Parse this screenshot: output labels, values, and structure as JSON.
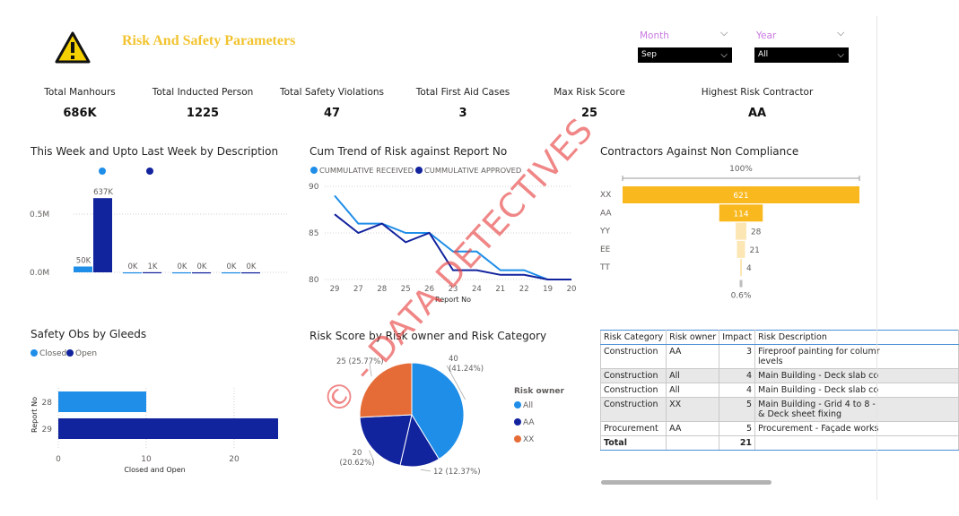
{
  "header": {
    "title": "Risk And Safety Parameters",
    "logo_icon": "warning-triangle-icon",
    "month_slicer": {
      "label": "Month",
      "value": "Sep"
    },
    "year_slicer": {
      "label": "Year",
      "value": "All"
    }
  },
  "kpis": [
    {
      "label": "Total Manhours",
      "value": "686K"
    },
    {
      "label": "Total Inducted Person",
      "value": "1225"
    },
    {
      "label": "Total Safety Violations",
      "value": "47"
    },
    {
      "label": "Total First Aid Cases",
      "value": "3"
    },
    {
      "label": "Max Risk Score",
      "value": "25"
    },
    {
      "label": "Highest Risk Contractor",
      "value": "AA"
    }
  ],
  "watermark": "© - DATA DETECTIVES",
  "colors": {
    "light_blue": "#1f8ee8",
    "dark_blue": "#12239e",
    "orange": "#e66c37",
    "gold": "#f9b81e",
    "pale_gold": "#fce6b3"
  },
  "chart_data": [
    {
      "id": "week",
      "type": "bar",
      "title": "This Week and Upto Last Week by Description",
      "categories": [
        "",
        "",
        "",
        ""
      ],
      "series": [
        {
          "values": [
            50000,
            0,
            0,
            0
          ],
          "labels": [
            "50K",
            "0K",
            "0K",
            "0K"
          ],
          "color": "#1f8ee8"
        },
        {
          "values": [
            637000,
            1000,
            0,
            0
          ],
          "labels": [
            "637K",
            "1K",
            "0K",
            "0K"
          ],
          "color": "#12239e"
        }
      ],
      "yticks": [
        "0.0M",
        "0.5M"
      ],
      "ytick_values": [
        0,
        500000
      ],
      "ylim": [
        0,
        800000
      ]
    },
    {
      "id": "cum",
      "type": "line",
      "title": "Cum Trend of Risk against Report No",
      "xlabel": "Report No",
      "categories": [
        "29",
        "27",
        "28",
        "25",
        "26",
        "23",
        "24",
        "21",
        "22",
        "19",
        "20"
      ],
      "series": [
        {
          "name": "CUMMULATIVE RECEIVED",
          "values": [
            89,
            86,
            86,
            85,
            85,
            83,
            83,
            81,
            81,
            80,
            80
          ],
          "color": "#1f8ee8"
        },
        {
          "name": "CUMMULATIVE APPROVED",
          "values": [
            87,
            85,
            86,
            84,
            85,
            81,
            81,
            80.5,
            80.5,
            80,
            80
          ],
          "color": "#12239e"
        }
      ],
      "yticks": [
        "80",
        "85",
        "90"
      ],
      "ytick_values": [
        80,
        85,
        90
      ],
      "ylim": [
        80,
        90
      ]
    },
    {
      "id": "funnel",
      "type": "bar",
      "title": "Contractors Against Non Compliance",
      "categories": [
        "XX",
        "AA",
        "YY",
        "EE",
        "TT"
      ],
      "values": [
        621,
        114,
        28,
        21,
        4
      ],
      "top_label": "100%",
      "bottom_label": "0.6%"
    },
    {
      "id": "gleeds",
      "type": "bar",
      "title": "Safety Obs by Gleeds",
      "xlabel": "Closed and Open",
      "ylabel": "Report No",
      "categories": [
        "28",
        "29"
      ],
      "series": [
        {
          "name": "Closed",
          "values": [
            10,
            0
          ],
          "color": "#1f8ee8"
        },
        {
          "name": "Open",
          "values": [
            0,
            25
          ],
          "color": "#12239e"
        }
      ],
      "xticks": [
        "0",
        "10",
        "20"
      ],
      "xtick_values": [
        0,
        10,
        20
      ],
      "xlim": [
        0,
        25
      ]
    },
    {
      "id": "pie",
      "type": "pie",
      "title": "Risk Score by Risk owner and Risk Category",
      "legend_title": "Risk owner",
      "slices": [
        {
          "name": "All",
          "value": 40,
          "label": "40\n(41.24%)",
          "color": "#1f8ee8"
        },
        {
          "name": "AA",
          "value": 12,
          "label": "12 (12.37%)",
          "color": "#12239e"
        },
        {
          "name": "AA",
          "value": 20,
          "label": "20\n(20.62%)",
          "color": "#12239e"
        },
        {
          "name": "XX",
          "value": 25,
          "label": "25 (25.77%)",
          "color": "#e66c37"
        }
      ],
      "legend": [
        "All",
        "AA",
        "XX"
      ]
    }
  ],
  "risk_table": {
    "columns": [
      "Risk Category",
      "Risk owner",
      "Impact",
      "Risk Description"
    ],
    "rows": [
      {
        "c": "Construction",
        "o": "AA",
        "i": "3",
        "d1": "Fireproof painting for columr",
        "d2": "levels",
        "shade": false
      },
      {
        "c": "Construction",
        "o": "All",
        "i": "4",
        "d1": "Main Building - Deck slab co",
        "d2": "",
        "shade": true
      },
      {
        "c": "Construction",
        "o": "All",
        "i": "4",
        "d1": "Main Building - Deck slab co",
        "d2": "",
        "shade": false
      },
      {
        "c": "Construction",
        "o": "XX",
        "i": "5",
        "d1": "Main Building - Grid 4 to 8 -",
        "d2": "& Deck sheet fixing",
        "shade": true
      },
      {
        "c": "Procurement",
        "o": "AA",
        "i": "5",
        "d1": "Procurement - Façade works",
        "d2": "",
        "shade": false
      }
    ],
    "total_label": "Total",
    "total_value": "21"
  }
}
